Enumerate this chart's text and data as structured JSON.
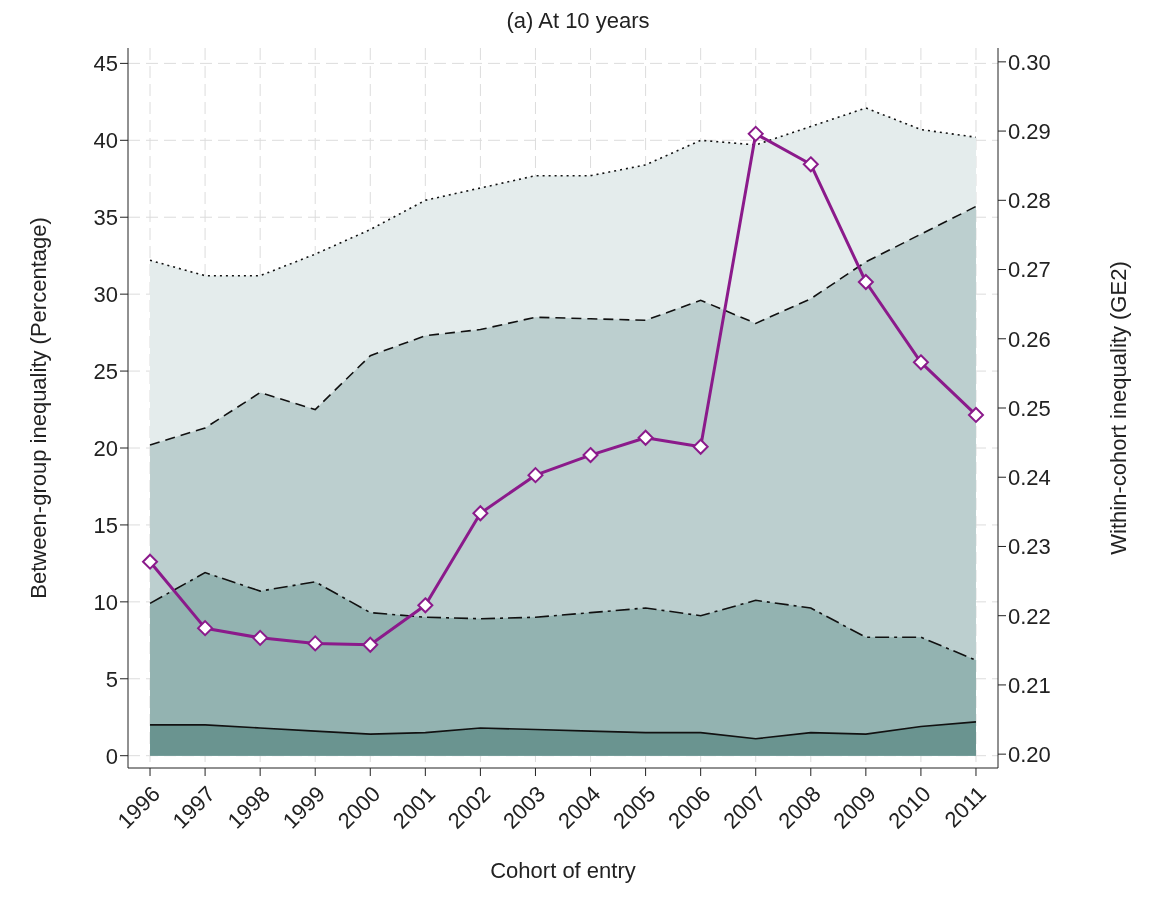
{
  "chart_data": {
    "type": "area",
    "title": "(a) At 10 years",
    "xlabel": "Cohort of entry",
    "ylabel": "Between-group inequality (Percentage)",
    "y2label": "Within-cohort inequality (GE2)",
    "x": [
      1996,
      1997,
      1998,
      1999,
      2000,
      2001,
      2002,
      2003,
      2004,
      2005,
      2006,
      2007,
      2008,
      2009,
      2010,
      2011
    ],
    "series": [
      {
        "color": "#e4ecec",
        "line_style": "dotted",
        "values": [
          32.2,
          31.2,
          31.2,
          32.6,
          34.2,
          36.1,
          36.9,
          37.7,
          37.7,
          38.4,
          40.0,
          39.7,
          40.9,
          42.1,
          40.7,
          40.2
        ]
      },
      {
        "color": "#bccfcf",
        "line_style": "dashed",
        "values": [
          20.2,
          21.3,
          23.6,
          22.5,
          26.0,
          27.3,
          27.7,
          28.5,
          28.4,
          28.3,
          29.6,
          28.1,
          29.7,
          32.1,
          33.9,
          35.7
        ]
      },
      {
        "color": "#93b3b1",
        "line_style": "dashdot",
        "values": [
          9.9,
          11.9,
          10.7,
          11.3,
          9.3,
          9.0,
          8.9,
          9.0,
          9.3,
          9.6,
          9.1,
          10.1,
          9.6,
          7.7,
          7.7,
          6.2
        ]
      },
      {
        "color": "#6a9490",
        "line_style": "solid",
        "values": [
          2.0,
          2.0,
          1.8,
          1.6,
          1.4,
          1.5,
          1.8,
          1.7,
          1.6,
          1.5,
          1.5,
          1.1,
          1.5,
          1.4,
          1.9,
          2.2
        ]
      },
      {
        "type": "line",
        "color": "#8b1a8b",
        "axis": "y2",
        "marker": "diamond",
        "line_style": "solid",
        "values": [
          0.2278,
          0.2182,
          0.2168,
          0.216,
          0.2158,
          0.2215,
          0.2348,
          0.2403,
          0.2432,
          0.2457,
          0.2444,
          0.2896,
          0.2852,
          0.2682,
          0.2566,
          0.249
        ]
      }
    ],
    "xlim": [
      1995.6,
      2011.4
    ],
    "xticks": [
      1996,
      1997,
      1998,
      1999,
      2000,
      2001,
      2002,
      2003,
      2004,
      2005,
      2006,
      2007,
      2008,
      2009,
      2010,
      2011
    ],
    "ylim": [
      -0.8,
      46
    ],
    "yticks": [
      0,
      5,
      10,
      15,
      20,
      25,
      30,
      35,
      40,
      45
    ],
    "y2lim": [
      0.198,
      0.302
    ],
    "y2ticks": [
      {
        "value": 0.2,
        "label": "0.20"
      },
      {
        "value": 0.21,
        "label": "0.21"
      },
      {
        "value": 0.22,
        "label": "0.22"
      },
      {
        "value": 0.23,
        "label": "0.23"
      },
      {
        "value": 0.24,
        "label": "0.24"
      },
      {
        "value": 0.25,
        "label": "0.25"
      },
      {
        "value": 0.26,
        "label": "0.26"
      },
      {
        "value": 0.27,
        "label": "0.27"
      },
      {
        "value": 0.28,
        "label": "0.28"
      },
      {
        "value": 0.29,
        "label": "0.29"
      },
      {
        "value": 0.3,
        "label": "0.30"
      }
    ],
    "grid": true,
    "legend": false
  }
}
